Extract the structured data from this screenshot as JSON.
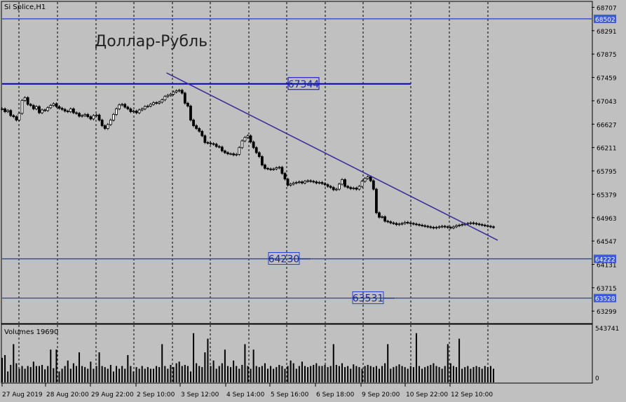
{
  "chart_data": {
    "type": "candlestick",
    "symbol_label": "Si Splice,H1",
    "annotation": "Доллар-Рубль",
    "price_axis": {
      "range": [
        63090,
        68800
      ],
      "ticks": [
        68707,
        68291,
        67875,
        67459,
        67043,
        66627,
        66211,
        65795,
        65379,
        64963,
        64547,
        64131,
        63715,
        63299
      ]
    },
    "time_axis_labels": [
      "27 Aug 2019",
      "28 Aug 20:00",
      "29 Aug 22:00",
      "2 Sep 10:00",
      "3 Sep 12:00",
      "4 Sep 14:00",
      "5 Sep 16:00",
      "6 Sep 18:00",
      "9 Sep 20:00",
      "10 Sep 22:00",
      "12 Sep 10:00"
    ],
    "bars_count": 173,
    "close_series": [
      66900,
      66850,
      66870,
      66780,
      66760,
      66700,
      66820,
      67050,
      67100,
      66980,
      66960,
      66900,
      66940,
      66830,
      66880,
      66870,
      66920,
      66960,
      66990,
      66940,
      66910,
      66890,
      66860,
      66850,
      66900,
      66830,
      66820,
      66770,
      66780,
      66800,
      66760,
      66720,
      66780,
      66790,
      66700,
      66600,
      66550,
      66620,
      66700,
      66800,
      66900,
      66970,
      66980,
      66930,
      66900,
      66850,
      66860,
      66830,
      66880,
      66900,
      66940,
      66950,
      66980,
      67010,
      67000,
      67020,
      67060,
      67120,
      67140,
      67160,
      67200,
      67220,
      67230,
      67180,
      67000,
      66950,
      66700,
      66600,
      66550,
      66500,
      66420,
      66300,
      66290,
      66280,
      66270,
      66230,
      66220,
      66150,
      66120,
      66100,
      66100,
      66080,
      66090,
      66210,
      66330,
      66390,
      66420,
      66310,
      66210,
      66120,
      66050,
      65900,
      65840,
      65830,
      65820,
      65830,
      65850,
      65860,
      65750,
      65650,
      65540,
      65560,
      65580,
      65590,
      65600,
      65580,
      65610,
      65620,
      65610,
      65600,
      65580,
      65590,
      65570,
      65550,
      65520,
      65500,
      65460,
      65470,
      65560,
      65640,
      65520,
      65500,
      65480,
      65490,
      65470,
      65520,
      65610,
      65660,
      65690,
      65620,
      65470,
      65050,
      64970,
      64980,
      64900,
      64890,
      64870,
      64860,
      64840,
      64850,
      64860,
      64880,
      64870,
      64860,
      64850,
      64840,
      64830,
      64820,
      64810,
      64800,
      64790,
      64780,
      64790,
      64800,
      64810,
      64800,
      64790,
      64780,
      64800,
      64820,
      64830,
      64840,
      64850,
      64860,
      64870,
      64860,
      64850,
      64840,
      64830,
      64820,
      64810,
      64800,
      64790
    ],
    "volume_series": [
      45,
      50,
      20,
      32,
      70,
      35,
      25,
      30,
      25,
      30,
      28,
      38,
      30,
      30,
      32,
      24,
      30,
      60,
      26,
      60,
      20,
      25,
      30,
      40,
      25,
      35,
      30,
      55,
      30,
      28,
      25,
      38,
      25,
      30,
      55,
      30,
      28,
      25,
      32,
      20,
      30,
      25,
      30,
      25,
      50,
      30,
      20,
      28,
      25,
      30,
      25,
      28,
      25,
      25,
      30,
      28,
      70,
      30,
      25,
      32,
      28,
      35,
      38,
      30,
      32,
      30,
      20,
      90,
      35,
      30,
      28,
      55,
      80,
      30,
      40,
      25,
      30,
      35,
      60,
      30,
      28,
      40,
      30,
      25,
      32,
      70,
      30,
      25,
      60,
      30,
      28,
      30,
      35,
      25,
      30,
      25,
      28,
      32,
      30,
      25,
      30,
      40,
      35,
      25,
      30,
      38,
      30,
      28,
      30,
      32,
      35,
      30,
      30,
      32,
      28,
      30,
      70,
      32,
      30,
      35,
      28,
      30,
      25,
      33,
      30,
      28,
      25,
      30,
      32,
      30,
      28,
      30,
      25,
      30,
      35,
      70,
      25,
      28,
      30,
      33,
      30,
      28,
      25,
      30,
      28,
      90,
      30,
      25,
      28,
      30,
      32,
      35,
      30,
      28,
      25,
      30,
      70,
      35,
      30,
      28,
      80,
      25,
      28,
      30,
      25,
      28,
      30,
      28,
      25,
      30,
      28,
      30,
      25
    ],
    "volume_axis": {
      "max_label": "543741",
      "min_label": "0"
    },
    "volume_label": "Volumes 19690",
    "levels": [
      {
        "price": 68502,
        "label": "68502",
        "color": "#1f3fd8"
      },
      {
        "price": 67344,
        "label": "67344",
        "color": "#0000c8"
      },
      {
        "price": 64230,
        "label": "64230",
        "color": "#1f3fd8",
        "marker": "64222"
      },
      {
        "price": 63531,
        "label": "63531",
        "color": "#1f3fd8",
        "marker": "63528"
      }
    ],
    "trendline": {
      "from_bar": 60,
      "from_price": 67540,
      "to_bar": 172,
      "to_price": 64560,
      "color": "#3a2f9a"
    },
    "colors": {
      "background": "#c0c0c0",
      "grid": "#000000",
      "candle": "#000000",
      "volume": "#000000",
      "level": "#1f3fd8",
      "marker_bg": "#3d5ad7",
      "marker_text": "#ffffff"
    }
  }
}
